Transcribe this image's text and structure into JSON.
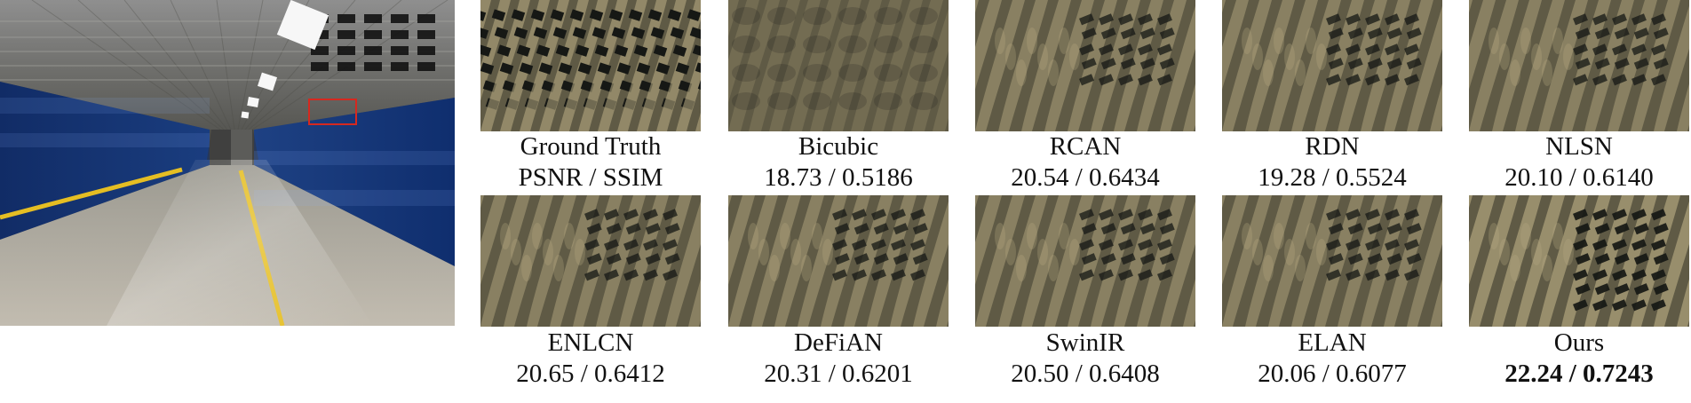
{
  "figure": {
    "main_image_label": "tunnel-scene",
    "highlight_color": "#d6281f",
    "panel_palette": {
      "dark": "#161815",
      "mid": "#5f5a45",
      "light": "#bcae85"
    },
    "panels": [
      {
        "name": "Ground Truth",
        "metric": "PSNR / SSIM",
        "style": "gt"
      },
      {
        "name": "Bicubic",
        "metric": "18.73 / 0.5186",
        "style": "blur"
      },
      {
        "name": "RCAN",
        "metric": "20.54 / 0.6434",
        "style": "method"
      },
      {
        "name": "RDN",
        "metric": "19.28 / 0.5524",
        "style": "method"
      },
      {
        "name": "NLSN",
        "metric": "20.10 / 0.6140",
        "style": "method"
      },
      {
        "name": "ENLCN",
        "metric": "20.65 / 0.6412",
        "style": "method"
      },
      {
        "name": "DeFiAN",
        "metric": "20.31 / 0.6201",
        "style": "method"
      },
      {
        "name": "SwinIR",
        "metric": "20.50 / 0.6408",
        "style": "method"
      },
      {
        "name": "ELAN",
        "metric": "20.06 / 0.6077",
        "style": "method"
      },
      {
        "name": "Ours",
        "metric": "22.24 / 0.7243",
        "style": "best",
        "bold": true
      }
    ]
  }
}
